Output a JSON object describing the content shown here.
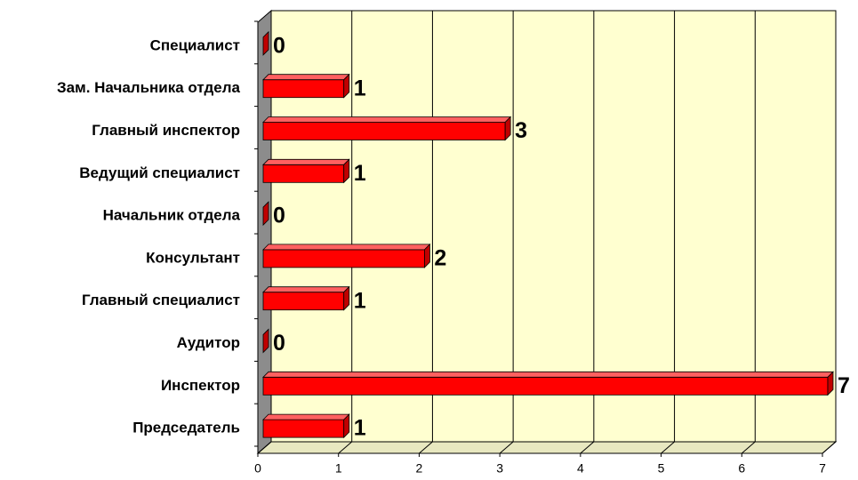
{
  "chart_data": {
    "type": "bar",
    "orientation": "horizontal",
    "categories": [
      "Специалист",
      "Зам. Начальника отдела",
      "Главный инспектор",
      "Ведущий специалист",
      "Начальник  отдела",
      "Консультант",
      "Главный специалист",
      "Аудитор",
      "Инспектор",
      "Председатель"
    ],
    "values": [
      0,
      1,
      3,
      1,
      0,
      2,
      1,
      0,
      7,
      1
    ],
    "color": "#ff0000",
    "xlim": [
      0,
      7
    ],
    "xticks": [
      0,
      1,
      2,
      3,
      4,
      5,
      6,
      7
    ],
    "grid": true
  }
}
